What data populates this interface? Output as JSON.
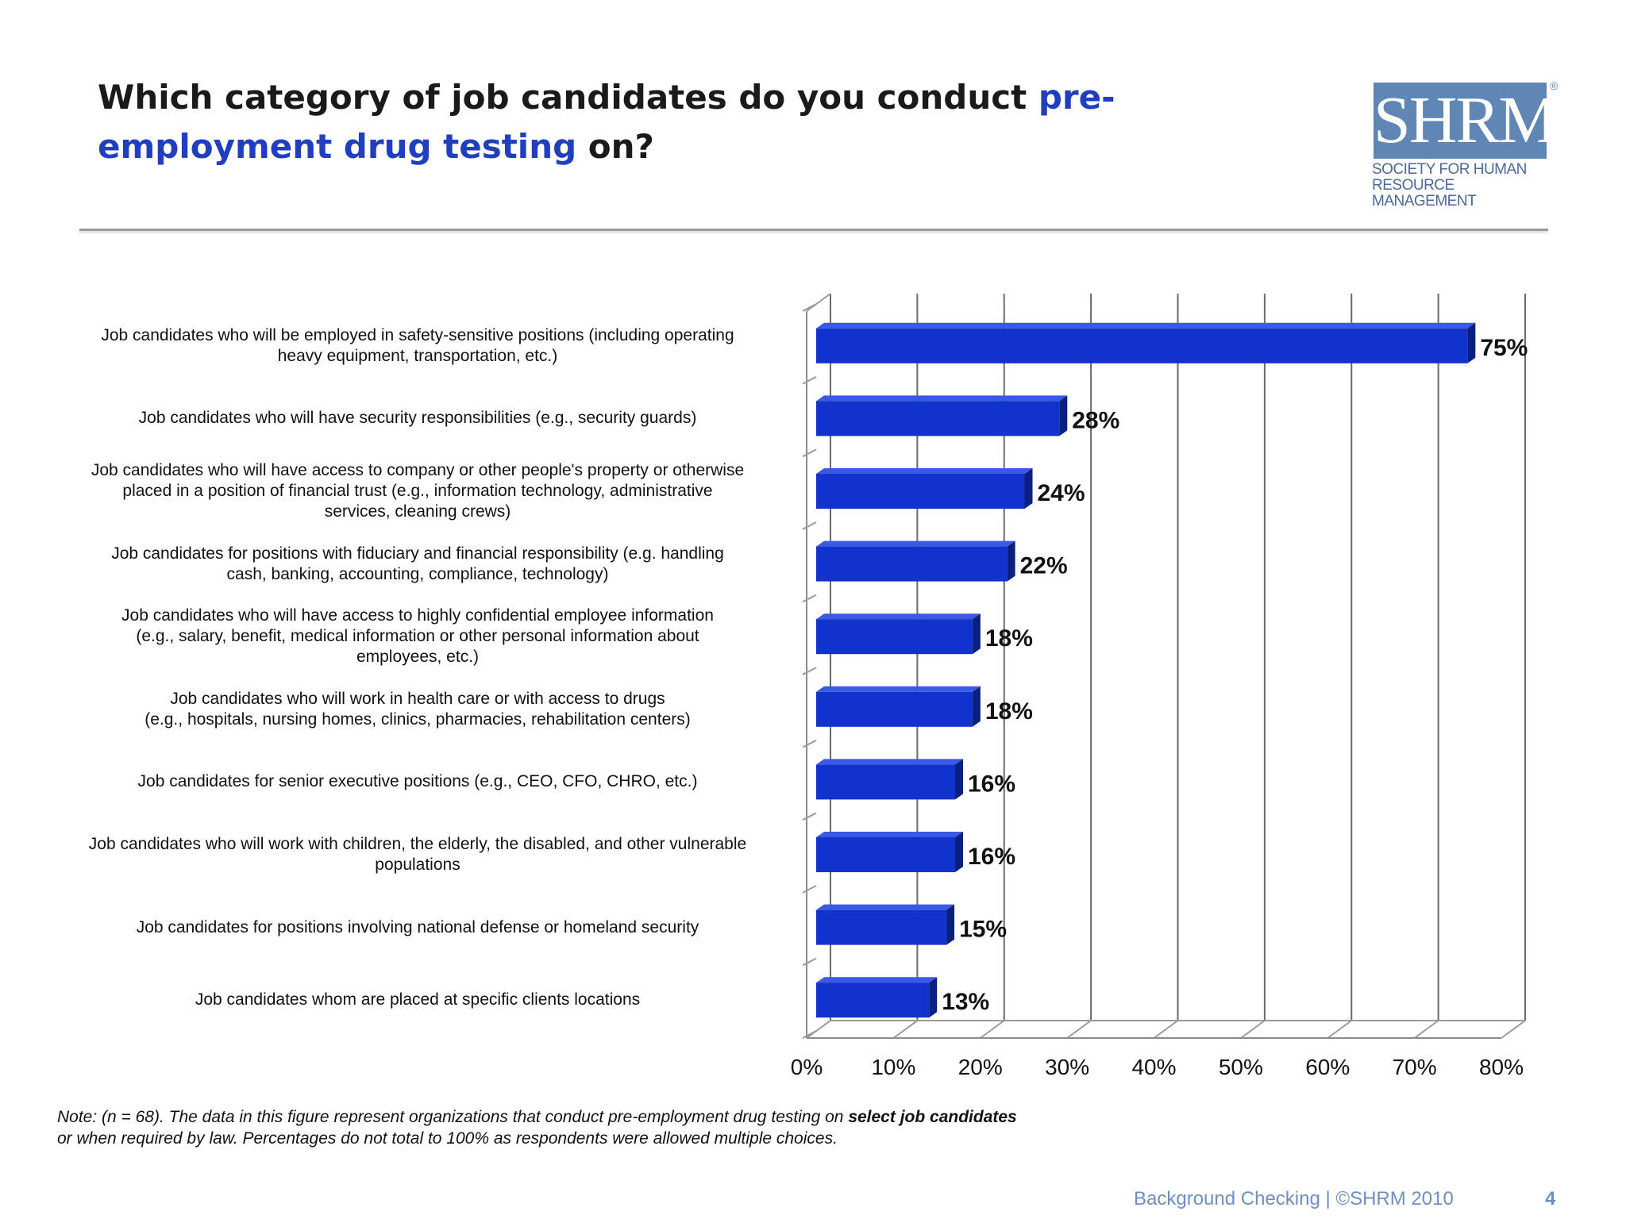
{
  "header": {
    "title_part1": "Which category of job candidates do you conduct ",
    "title_highlight": "pre-employment drug testing",
    "title_part2": " on?",
    "logo_text": "SHRM",
    "logo_subtitle_line1": "SOCIETY FOR HUMAN",
    "logo_subtitle_line2": "RESOURCE MANAGEMENT",
    "logo_tm": "®"
  },
  "colors": {
    "title_highlight": "#1f3fbf",
    "bar_front": "#1133cc",
    "bar_top": "#3a5ae6",
    "bar_side": "#0a2080",
    "footer": "#6f8fc0"
  },
  "chart_data": {
    "type": "bar",
    "orientation": "horizontal",
    "title": "Which category of job candidates do you conduct pre-employment drug testing on?",
    "categories": [
      "Job candidates who will be employed in safety-sensitive positions (including operating heavy equipment, transportation, etc.)",
      "Job candidates who will have security responsibilities (e.g., security guards)",
      "Job candidates who will have access to company or other people's property or otherwise placed in a position of financial trust (e.g., information technology, administrative services, cleaning crews)",
      "Job candidates for positions with fiduciary and financial responsibility (e.g. handling cash, banking,  accounting, compliance, technology)",
      "Job candidates who will have access to highly confidential employee information (e.g., salary, benefit, medical information or other personal information about employees, etc.)",
      "Job candidates who will work in health care or with access to drugs (e.g., hospitals, nursing homes, clinics, pharmacies, rehabilitation centers)",
      "Job candidates for senior executive positions (e.g., CEO, CFO, CHRO, etc.)",
      "Job candidates who will work with children, the elderly, the disabled, and other vulnerable populations",
      "Job candidates for positions involving national defense or homeland security",
      "Job candidates whom are placed at specific clients locations"
    ],
    "label_lines": [
      [
        "Job candidates who will be employed in safety-sensitive positions (including operating",
        "heavy equipment, transportation, etc.)"
      ],
      [
        "Job candidates who will have security responsibilities (e.g., security guards)"
      ],
      [
        "Job candidates who will have access to company or other people's property or otherwise",
        "placed in a position of financial trust (e.g., information technology, administrative",
        "services, cleaning crews)"
      ],
      [
        "Job candidates for positions with fiduciary and financial responsibility (e.g. handling",
        "cash, banking,  accounting, compliance, technology)"
      ],
      [
        "Job candidates who will have access to highly confidential employee information",
        "(e.g., salary, benefit, medical information or other personal information about",
        "employees, etc.)"
      ],
      [
        "Job candidates who will work in health care or with access to drugs",
        "(e.g., hospitals, nursing homes, clinics, pharmacies, rehabilitation centers)"
      ],
      [
        "Job candidates for senior executive positions (e.g., CEO, CFO, CHRO, etc.)"
      ],
      [
        "Job candidates who will work with children, the elderly, the disabled, and other vulnerable",
        "populations"
      ],
      [
        "Job candidates for positions involving national defense or homeland security"
      ],
      [
        "Job candidates whom are placed at specific clients locations"
      ]
    ],
    "values": [
      75,
      28,
      24,
      22,
      18,
      18,
      16,
      16,
      15,
      13
    ],
    "value_labels": [
      "75%",
      "28%",
      "24%",
      "22%",
      "18%",
      "18%",
      "16%",
      "16%",
      "15%",
      "13%"
    ],
    "xlim": [
      0,
      80
    ],
    "xticks": [
      0,
      10,
      20,
      30,
      40,
      50,
      60,
      70,
      80
    ],
    "xtick_labels": [
      "0%",
      "10%",
      "20%",
      "30%",
      "40%",
      "50%",
      "60%",
      "70%",
      "80%"
    ],
    "xlabel": "",
    "ylabel": "",
    "grid": true,
    "legend": "none"
  },
  "note": {
    "text_part1": "Note: (n = 68). The data in this figure represent organizations that conduct pre-employment drug testing on ",
    "text_bold": "select job candidates",
    "text_part2": "or when required by law. Percentages  do not total to 100% as respondents were allowed multiple choices."
  },
  "footer": {
    "text": "Background Checking | ©SHRM 2010",
    "page_number": "4"
  }
}
